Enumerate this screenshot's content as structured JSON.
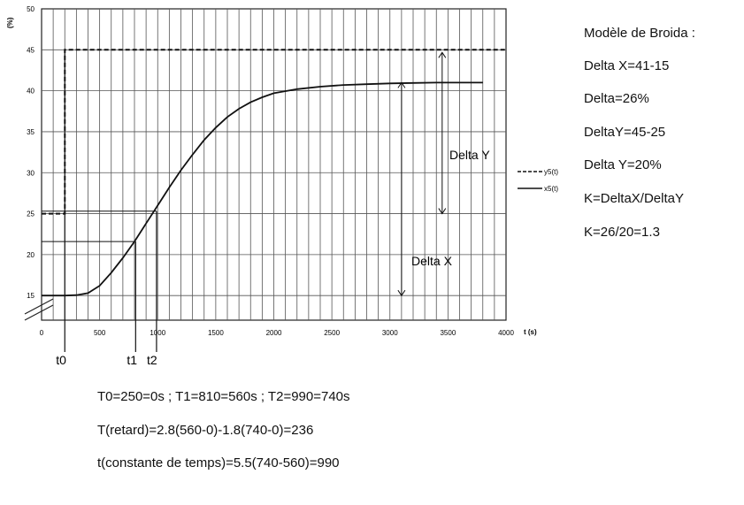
{
  "chart_data": {
    "type": "line",
    "title": "",
    "xlabel": "t (s)",
    "ylabel": "(%)",
    "xlim": [
      0,
      4000
    ],
    "ylim": [
      12,
      50
    ],
    "x_ticks": [
      0,
      500,
      1000,
      1500,
      2000,
      2500,
      3000,
      3500,
      4000
    ],
    "y_ticks": [
      15,
      20,
      25,
      30,
      35,
      40,
      45,
      50
    ],
    "grid": true,
    "legend_position": "right",
    "series": [
      {
        "name": "y5(t)",
        "style": "dashed",
        "x": [
          0,
          200,
          200,
          4000
        ],
        "y": [
          25,
          25,
          45,
          45
        ]
      },
      {
        "name": "x5(t)",
        "style": "solid",
        "x": [
          0,
          200,
          300,
          400,
          500,
          600,
          700,
          800,
          900,
          1000,
          1100,
          1200,
          1300,
          1400,
          1500,
          1600,
          1700,
          1800,
          1900,
          2000,
          2200,
          2400,
          2600,
          2800,
          3000,
          3200,
          3400,
          3600,
          3800
        ],
        "y": [
          15,
          15,
          15.05,
          15.3,
          16.2,
          17.8,
          19.6,
          21.6,
          23.8,
          26.0,
          28.2,
          30.3,
          32.2,
          34.0,
          35.5,
          36.8,
          37.8,
          38.6,
          39.2,
          39.7,
          40.2,
          40.5,
          40.7,
          40.8,
          40.9,
          40.95,
          41.0,
          41.0,
          41.0
        ]
      }
    ],
    "annotations": {
      "t0": "t0",
      "t1": "t1",
      "t2": "t2",
      "delta_y": "Delta Y",
      "delta_x": "Delta X"
    }
  },
  "notes": {
    "title": "Modèle de Broida :",
    "lines": [
      "Delta X=41-15",
      "Delta=26%",
      "DeltaY=45-25",
      "Delta Y=20%",
      "K=DeltaX/DeltaY",
      "K=26/20=1.3"
    ]
  },
  "calculations": [
    "T0=250=0s ;  T1=810=560s ;  T2=990=740s",
    "T(retard)=2.8(560-0)-1.8(740-0)=236",
    "t(constante de temps)=5.5(740-560)=990"
  ]
}
